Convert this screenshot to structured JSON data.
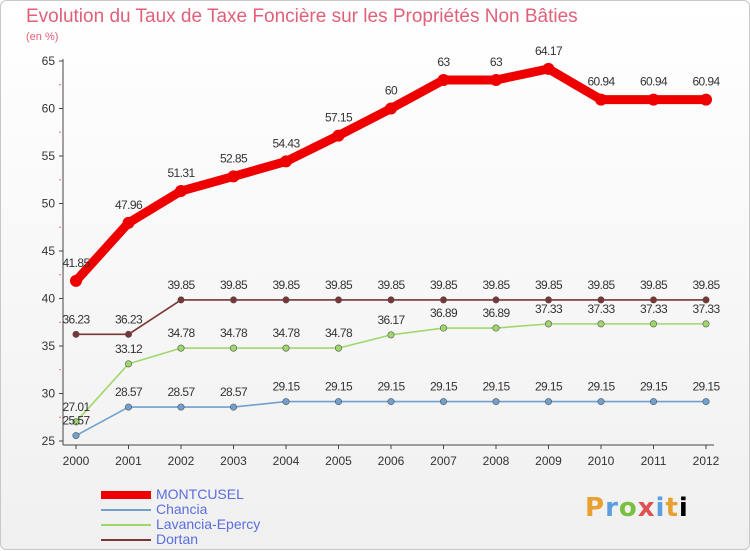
{
  "chart_data": {
    "type": "line",
    "title": "Evolution du Taux de Taxe Foncière sur les Propriétés Non Bâties",
    "ylabel": "(en %)",
    "xlabel": "",
    "ylim": [
      25,
      65
    ],
    "yticks": [
      25,
      30,
      35,
      40,
      45,
      50,
      55,
      60,
      65
    ],
    "categories": [
      "2000",
      "2001",
      "2002",
      "2003",
      "2004",
      "2005",
      "2006",
      "2007",
      "2008",
      "2009",
      "2010",
      "2011",
      "2012"
    ],
    "series": [
      {
        "name": "MONTCUSEL",
        "color": "#ee0000",
        "values": [
          41.85,
          47.96,
          51.31,
          52.85,
          54.43,
          57.15,
          60,
          63,
          63,
          64.17,
          60.94,
          60.94,
          60.94
        ],
        "labels": [
          "41.85",
          "47.96",
          "51.31",
          "52.85",
          "54.43",
          "57.15",
          "60",
          "63",
          "63",
          "64.17",
          "60.94",
          "60.94",
          "60.94"
        ]
      },
      {
        "name": "Chancia",
        "color": "#6fa0cf",
        "values": [
          25.57,
          28.57,
          28.57,
          28.57,
          29.15,
          29.15,
          29.15,
          29.15,
          29.15,
          29.15,
          29.15,
          29.15,
          29.15
        ],
        "labels": [
          "25.57",
          "28.57",
          "28.57",
          "28.57",
          "29.15",
          "29.15",
          "29.15",
          "29.15",
          "29.15",
          "29.15",
          "29.15",
          "29.15",
          "29.15"
        ]
      },
      {
        "name": "Lavancia-Epercy",
        "color": "#9fd86a",
        "values": [
          27.01,
          33.12,
          34.78,
          34.78,
          34.78,
          34.78,
          36.17,
          36.89,
          36.89,
          37.33,
          37.33,
          37.33,
          37.33
        ],
        "labels": [
          "27.01",
          "33.12",
          "34.78",
          "34.78",
          "34.78",
          "34.78",
          "36.17",
          "36.89",
          "36.89",
          "37.33",
          "37.33",
          "37.33",
          "37.33"
        ]
      },
      {
        "name": "Dortan",
        "color": "#7a3535",
        "values": [
          36.23,
          36.23,
          39.85,
          39.85,
          39.85,
          39.85,
          39.85,
          39.85,
          39.85,
          39.85,
          39.85,
          39.85,
          39.85
        ],
        "labels": [
          "36.23",
          "36.23",
          "39.85",
          "39.85",
          "39.85",
          "39.85",
          "39.85",
          "39.85",
          "39.85",
          "39.85",
          "39.85",
          "39.85",
          "39.85"
        ]
      }
    ],
    "legend_position": "bottom-left"
  },
  "brand": {
    "letters": [
      "P",
      "r",
      "o",
      "x",
      "i",
      "t",
      "i"
    ]
  }
}
